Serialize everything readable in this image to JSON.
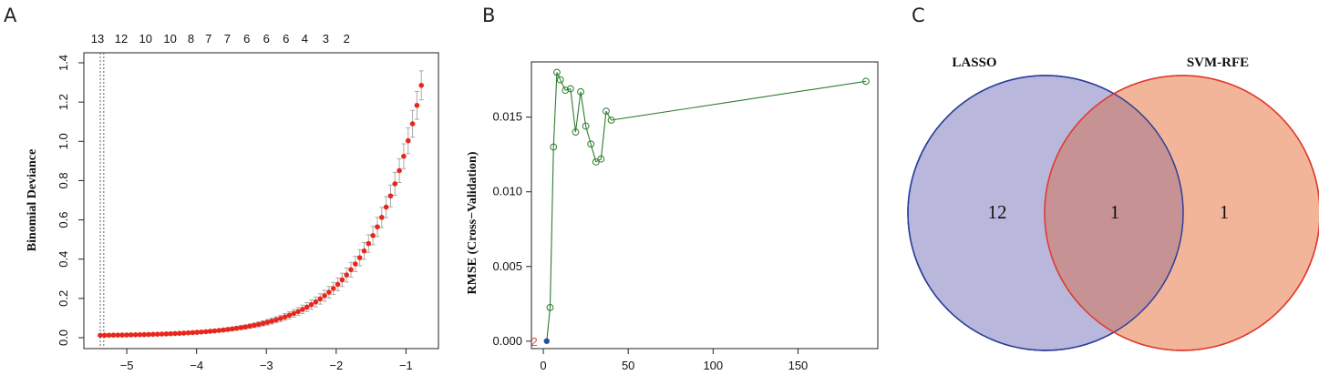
{
  "panels": {
    "a": "A",
    "b": "B",
    "c": "C"
  },
  "chart_data": [
    {
      "type": "scatter",
      "xlabel": "",
      "ylabel": "Binomial Deviance",
      "xlim": [
        -5.55,
        -0.6
      ],
      "ylim": [
        0,
        1.4
      ],
      "x_ticks": [
        "−5",
        "−4",
        "−3",
        "−2",
        "−1"
      ],
      "x_tick_values": [
        -5,
        -4,
        -3,
        -2,
        -1
      ],
      "y_ticks": [
        "0.0",
        "0.2",
        "0.4",
        "0.6",
        "0.8",
        "1.0",
        "1.2",
        "1.4"
      ],
      "y_tick_values": [
        0,
        0.2,
        0.4,
        0.6,
        0.8,
        1.0,
        1.2,
        1.4
      ],
      "top_axis_labels": [
        "13",
        "12",
        "10",
        "10",
        "8",
        "7",
        "7",
        "6",
        "6",
        "6",
        "4",
        "3",
        "2"
      ],
      "top_axis_positions": [
        -5.42,
        -5.08,
        -4.73,
        -4.38,
        -4.08,
        -3.83,
        -3.56,
        -3.28,
        -3.0,
        -2.72,
        -2.45,
        -2.15,
        -1.85
      ],
      "vlines": [
        -5.38,
        -5.33
      ],
      "curve": {
        "xmin": -5.38,
        "xmax": -0.78,
        "n": 74,
        "y_start": 0.012,
        "y_end": 1.285
      },
      "point_color": "#e8261b",
      "errorbar_color": "#aaaaaa"
    },
    {
      "type": "line",
      "xlabel": "",
      "ylabel": "RMSE (Cross−Validation)",
      "xlim": [
        -7,
        197
      ],
      "ylim": [
        -0.0005,
        0.0187
      ],
      "x_ticks": [
        "0",
        "50",
        "100",
        "150"
      ],
      "x_tick_values": [
        0,
        50,
        100,
        150
      ],
      "y_ticks": [
        "0.000",
        "0.005",
        "0.010",
        "0.015"
      ],
      "y_tick_values": [
        0,
        0.005,
        0.01,
        0.015
      ],
      "x": [
        2,
        4,
        6,
        8,
        10,
        13,
        16,
        19,
        22,
        25,
        28,
        31,
        34,
        37,
        40,
        190
      ],
      "y": [
        0.0,
        0.00225,
        0.013,
        0.018,
        0.0175,
        0.0168,
        0.0169,
        0.014,
        0.0167,
        0.0144,
        0.0132,
        0.012,
        0.0122,
        0.0154,
        0.0148,
        0.0174
      ],
      "highlight_index": 0,
      "marker_label": "2",
      "line_color": "#2e7d2e",
      "highlight_color": "#1f4fa0",
      "marker_label_color": "#d9534f"
    }
  ],
  "venn": {
    "left_label": "LASSO",
    "right_label": "SVM-RFE",
    "left_only": "12",
    "both": "1",
    "right_only": "1",
    "left_fill": "#b9b8dc",
    "left_stroke": "#2a3f9a",
    "right_fill": "#f3b59a",
    "right_stroke": "#e03a2c",
    "overlap_fill": "#c79293"
  }
}
